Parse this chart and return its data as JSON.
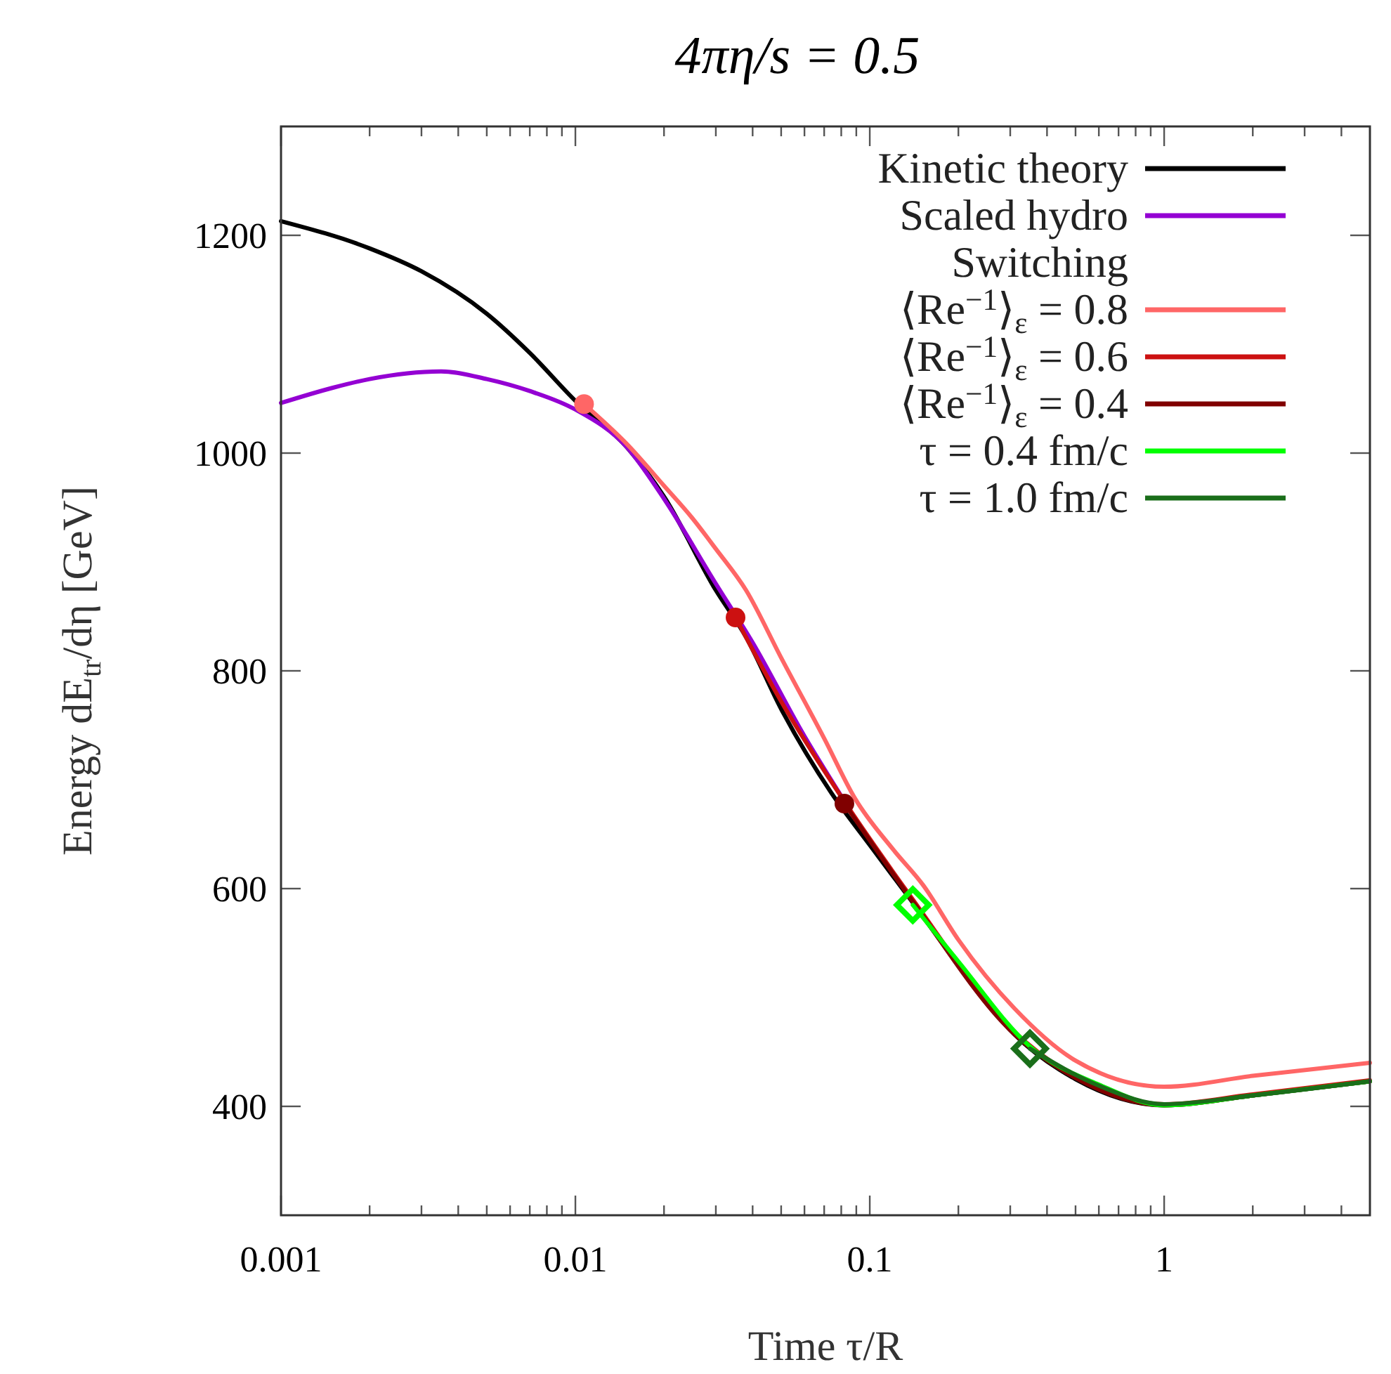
{
  "chart_data": {
    "type": "line",
    "title": "4πη/s = 0.5",
    "xlabel": "Time τ/R",
    "ylabel": "Energy dE$_{tr}$/dη [GeV]",
    "log": "x",
    "xlim": [
      0.001,
      5
    ],
    "xticks": [
      0.001,
      0.01,
      0.1,
      1
    ],
    "ylim": [
      300,
      1300
    ],
    "yticks": [
      400,
      600,
      800,
      1000,
      1200
    ],
    "grid": false,
    "legend": "top right",
    "line_style": "solid",
    "annotations": [
      "Switching"
    ],
    "series": [
      {
        "name": "Kinetic theory",
        "color": "#000000",
        "x": [
          0.001,
          0.002,
          0.003,
          0.005,
          0.007,
          0.01,
          0.015,
          0.02,
          0.03,
          0.038,
          0.05,
          0.074,
          0.1,
          0.134,
          0.2,
          0.31,
          0.5,
          1,
          2,
          5
        ],
        "values": [
          1213,
          1188,
          1167,
          1128,
          1092,
          1048,
          1005,
          960,
          874,
          831,
          765,
          688,
          640,
          594,
          530,
          466,
          425,
          401,
          410,
          423
        ]
      },
      {
        "name": "Scaled hydro",
        "color": "#9400d3",
        "x": [
          0.001,
          0.0015,
          0.002,
          0.0035,
          0.005,
          0.007,
          0.01,
          0.015,
          0.02,
          0.03,
          0.04,
          0.06,
          0.08
        ],
        "values": [
          1046,
          1060,
          1068,
          1075,
          1068,
          1057,
          1040,
          1005,
          958,
          880,
          826,
          740,
          685
        ]
      },
      {
        "name": "⟨Re$^{−1}$⟩$_{ε}$ = 0.8",
        "color": "#ff6666",
        "x": [
          0.0107,
          0.015,
          0.02,
          0.025,
          0.03,
          0.038,
          0.05,
          0.07,
          0.089,
          0.12,
          0.152,
          0.2,
          0.31,
          0.5,
          1,
          2,
          5
        ],
        "values": [
          1045,
          1008,
          970,
          940,
          912,
          874,
          812,
          738,
          683,
          636,
          603,
          553,
          490,
          442,
          418,
          428,
          440
        ]
      },
      {
        "name": "⟨Re$^{−1}$⟩$_{ε}$ = 0.6",
        "color": "#cc1111",
        "x": [
          0.035,
          0.05,
          0.082,
          0.14,
          0.3,
          0.5,
          1,
          2,
          5
        ],
        "values": [
          849,
          772,
          680,
          590,
          472,
          427,
          402,
          411,
          424
        ]
      },
      {
        "name": "⟨Re$^{−1}$⟩$_{ε}$ = 0.4",
        "color": "#800000",
        "x": [
          0.082,
          0.14,
          0.3,
          0.5,
          1,
          2,
          5
        ],
        "values": [
          678,
          588,
          470,
          426,
          401,
          410,
          423
        ]
      },
      {
        "name": "τ = 0.4 fm/c",
        "color": "#00ff00",
        "x": [
          0.14,
          0.2,
          0.35,
          0.6,
          1,
          2,
          5
        ],
        "values": [
          585,
          533,
          455,
          420,
          401,
          410,
          423
        ]
      },
      {
        "name": "τ = 1.0 fm/c",
        "color": "#1a6e1a",
        "x": [
          0.35,
          0.6,
          1,
          2,
          5
        ],
        "values": [
          453,
          419,
          402,
          410,
          423
        ]
      },
      {
        "type": "scatter",
        "color": "#ff6666",
        "marker": "circle",
        "x": [
          0.0107
        ],
        "values": [
          1045
        ]
      },
      {
        "type": "scatter",
        "color": "#cc1111",
        "marker": "circle",
        "x": [
          0.035
        ],
        "values": [
          849
        ]
      },
      {
        "type": "scatter",
        "color": "#800000",
        "marker": "circle",
        "x": [
          0.082
        ],
        "values": [
          678
        ]
      },
      {
        "type": "scatter",
        "color": "#00ff00",
        "marker": "diamond",
        "x": [
          0.14
        ],
        "values": [
          585
        ]
      },
      {
        "type": "scatter",
        "color": "#1a6e1a",
        "marker": "diamond",
        "x": [
          0.35
        ],
        "values": [
          453
        ]
      }
    ]
  }
}
